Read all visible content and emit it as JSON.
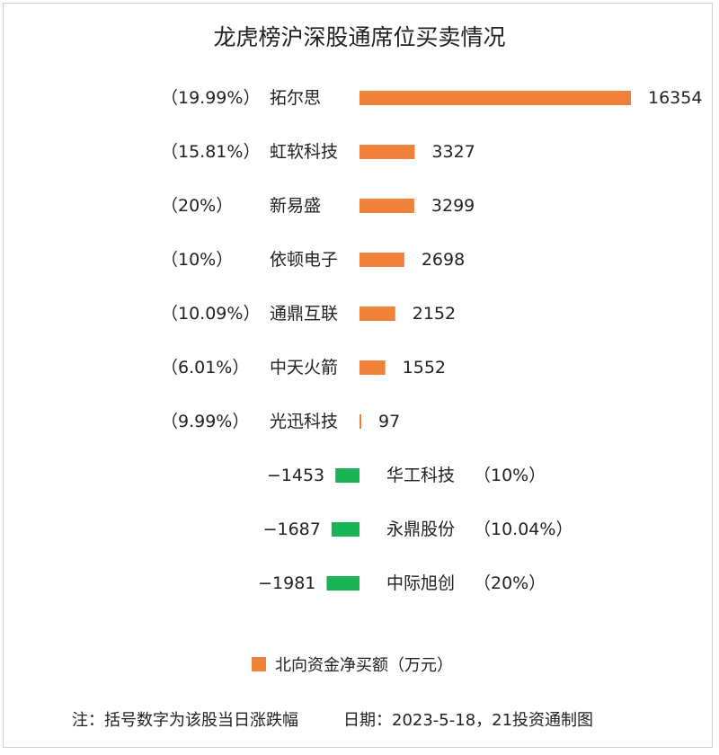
{
  "chart_data": {
    "type": "bar",
    "orientation": "horizontal-diverging",
    "title": "龙虎榜沪深股通席位买卖情况",
    "categories": [
      "拓尔思",
      "虹软科技",
      "新易盛",
      "依顿电子",
      "通鼎互联",
      "中天火箭",
      "光迅科技",
      "华工科技",
      "永鼎股份",
      "中际旭创"
    ],
    "change_labels": [
      "（19.99%）",
      "（15.81%）",
      "（20%）",
      "（10%）",
      "（10.09%）",
      "（6.01%）",
      "（9.99%）",
      "（10%）",
      "（10.04%）",
      "（20%）"
    ],
    "series": [
      {
        "name": "北向资金净买额（万元）",
        "values": [
          16354,
          3327,
          3299,
          2698,
          2152,
          1552,
          97,
          -1453,
          -1687,
          -1981
        ],
        "value_labels": [
          "16354",
          "3327",
          "3299",
          "2698",
          "2152",
          "1552",
          "97",
          "−1453",
          "−1687",
          "−1981"
        ]
      }
    ],
    "colors": {
      "positive": "#f0813a",
      "negative": "#1ab356"
    },
    "legend_position": "bottom",
    "grid": false,
    "note": "注：括号数字为该股当日涨跌幅",
    "date_source": "日期：2023-5-18，21投资通制图"
  }
}
